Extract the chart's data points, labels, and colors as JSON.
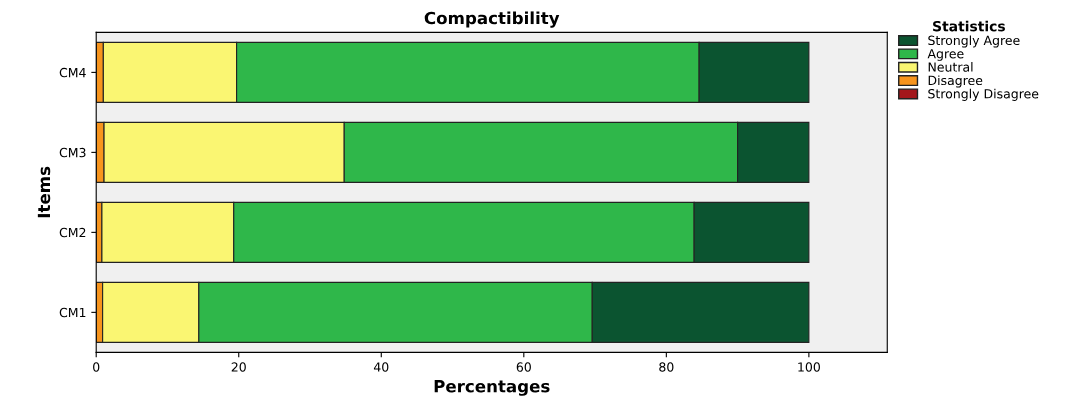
{
  "chart_data": {
    "type": "bar",
    "orientation": "horizontal",
    "stacked": true,
    "title": "Compactibility",
    "xlabel": "Percentages",
    "ylabel": "Items",
    "legend_title": "Statistics",
    "legend": "top right",
    "categories": [
      "CM4",
      "CM3",
      "CM2",
      "CM1"
    ],
    "series": [
      {
        "name": "Strongly Disagree",
        "color": "#a3161b",
        "values": [
          null,
          null,
          null,
          null
        ]
      },
      {
        "name": "Disagree",
        "color": "#f7941d",
        "values": [
          1.0,
          1.1,
          0.8,
          0.9
        ]
      },
      {
        "name": "Neutral",
        "color": "#faf672",
        "values": [
          18.7,
          33.7,
          18.5,
          13.5
        ]
      },
      {
        "name": "Agree",
        "color": "#2fb74a",
        "values": [
          64.9,
          55.2,
          64.6,
          55.2
        ]
      },
      {
        "name": "Strongly Agree",
        "color": "#0b5430",
        "values": [
          15.4,
          10.0,
          16.1,
          30.4
        ]
      }
    ],
    "xlim": [
      0,
      111
    ],
    "xticks": [
      0,
      20,
      40,
      60,
      80,
      100
    ],
    "grid": false
  }
}
